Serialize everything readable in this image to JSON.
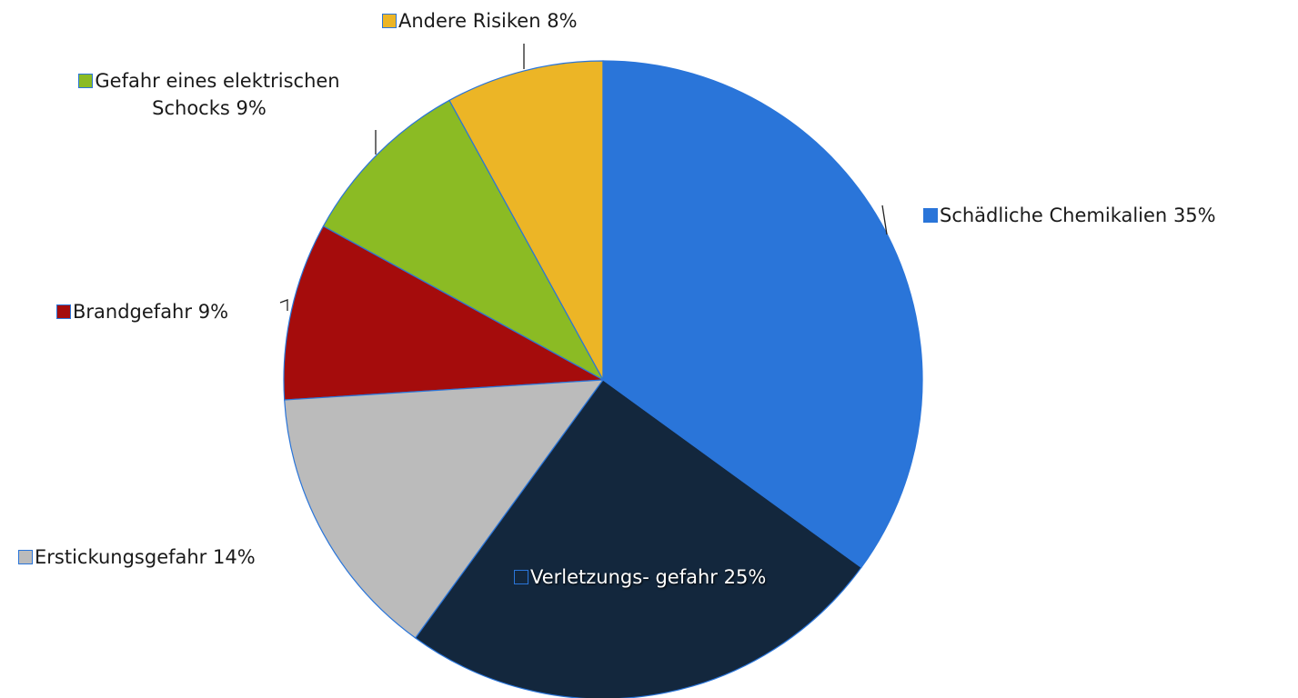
{
  "chart_data": {
    "type": "pie",
    "categories": [
      "Schädliche Chemikalien",
      "Verletzungs- gefahr",
      "Erstickungsgefahr",
      "Brandgefahr",
      "Gefahr eines elektrischen Schocks",
      "Andere Risiken"
    ],
    "values": [
      35,
      25,
      14,
      9,
      9,
      8
    ],
    "value_labels": [
      "35%",
      "25%",
      "14%",
      "9%",
      "9%",
      "8%"
    ],
    "colors": [
      "#2a75d9",
      "#13273d",
      "#bbbbbb",
      "#a50c0c",
      "#8bbb24",
      "#ecb526"
    ]
  }
}
